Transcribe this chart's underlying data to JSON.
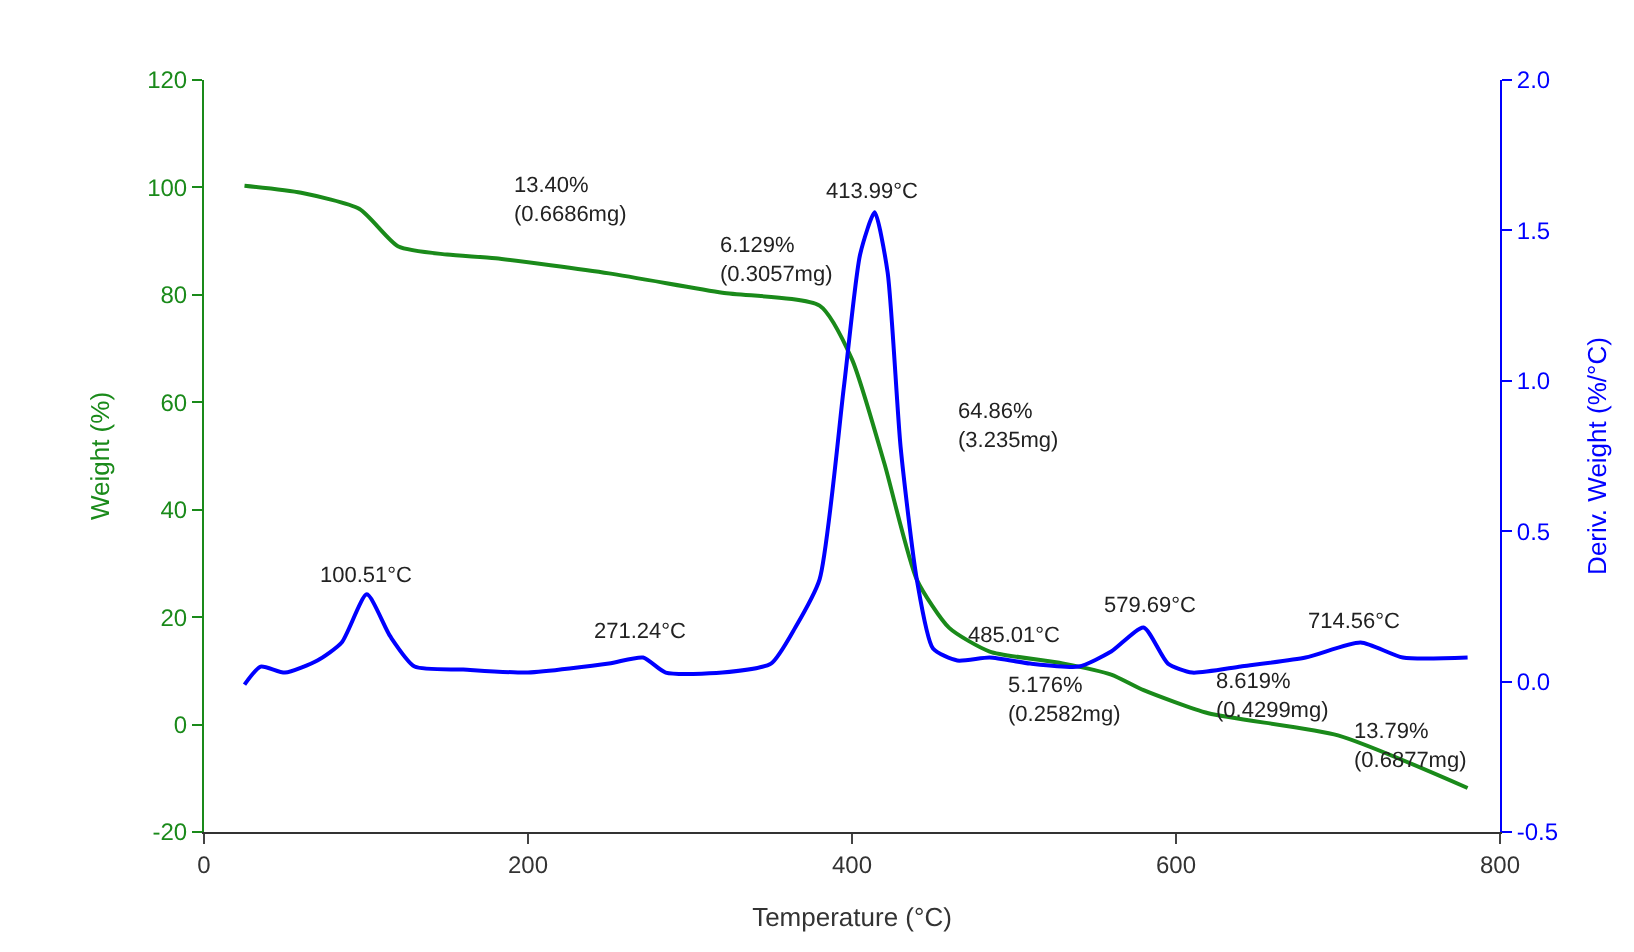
{
  "chart_data": {
    "type": "line",
    "xlabel": "Temperature (°C)",
    "ylabel": "Weight (%)",
    "y2label": "Deriv. Weight (%/°C)",
    "xlim": [
      0,
      800
    ],
    "xticks": [
      0,
      200,
      400,
      600,
      800
    ],
    "ylim": [
      -20,
      120
    ],
    "yticks": [
      -20,
      0,
      20,
      40,
      60,
      80,
      100,
      120
    ],
    "y2lim": [
      -0.5,
      2.0
    ],
    "y2ticks": [
      {
        "value": -0.5,
        "label": "-0.5"
      },
      {
        "value": 0,
        "label": "0.0"
      },
      {
        "value": 0.5,
        "label": "0.5"
      },
      {
        "value": 1.0,
        "label": "1.0"
      },
      {
        "value": 1.5,
        "label": "1.5"
      },
      {
        "value": 2.0,
        "label": "2.0"
      }
    ],
    "marker": "none",
    "line_style": "solid",
    "series": [
      {
        "color": "#1a8a1a",
        "x": [
          25,
          60,
          96,
          120,
          150,
          180,
          250,
          320,
          380,
          400,
          420,
          440,
          460,
          485,
          530,
          560,
          580,
          620,
          700,
          780
        ],
        "values": [
          100.3,
          99,
          96,
          89,
          87.5,
          86.8,
          84,
          80.4,
          78,
          68,
          48.6,
          27,
          18,
          13.6,
          11.4,
          9.3,
          6.4,
          2.1,
          -2,
          -11.8
        ]
      },
      {
        "color": "#0000ff",
        "axis": "y2",
        "x": [
          25,
          35,
          50,
          70,
          85,
          100.5,
          115,
          130,
          160,
          200,
          250,
          271,
          285,
          320,
          350,
          365,
          380,
          395,
          405,
          414,
          422,
          430,
          440,
          450,
          465,
          485,
          510,
          540,
          560,
          580,
          595,
          610,
          640,
          680,
          714,
          740,
          780
        ],
        "values": [
          -0.01,
          0.05,
          0.03,
          0.07,
          0.13,
          0.29,
          0.15,
          0.05,
          0.04,
          0.03,
          0.06,
          0.08,
          0.03,
          0.03,
          0.06,
          0.18,
          0.34,
          0.98,
          1.42,
          1.56,
          1.36,
          0.78,
          0.34,
          0.11,
          0.07,
          0.08,
          0.06,
          0.05,
          0.1,
          0.18,
          0.06,
          0.03,
          0.05,
          0.08,
          0.13,
          0.08,
          0.08
        ]
      }
    ],
    "annotations": [
      "13.40%\n(0.6686mg)",
      "6.129%\n(0.3057mg)",
      "413.99°C",
      "64.86%\n(3.235mg)",
      "100.51°C",
      "271.24°C",
      "485.01°C",
      "579.69°C",
      "5.176%\n(0.2582mg)",
      "8.619%\n(0.4299mg)",
      "714.56°C",
      "13.79%\n(0.6877mg)"
    ]
  }
}
